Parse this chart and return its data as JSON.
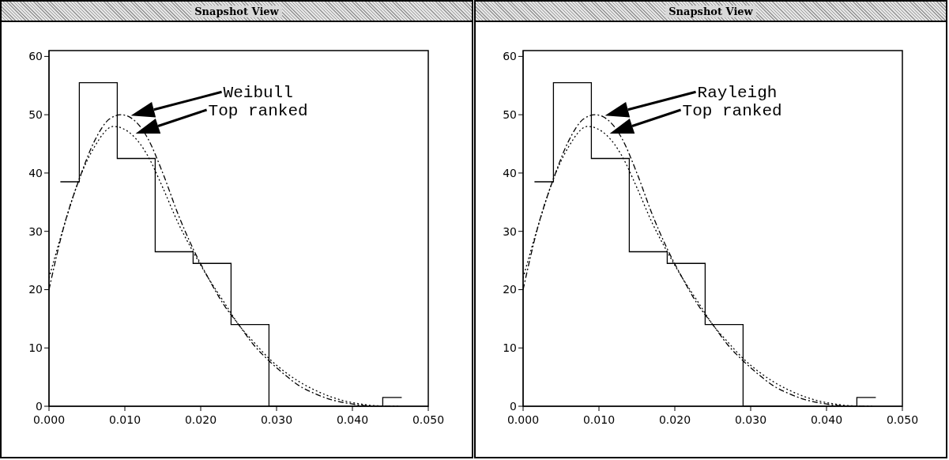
{
  "chart_data": [
    {
      "type": "histogram",
      "title": "Snapshot View",
      "bins": [
        0.0015,
        0.004,
        0.009,
        0.014,
        0.019,
        0.024,
        0.029,
        0.034,
        0.039,
        0.044,
        0.0465
      ],
      "values": [
        38.5,
        55.5,
        42.5,
        26.5,
        24.5,
        14,
        0,
        0,
        0,
        1.5
      ],
      "color": "#000000",
      "xlim": [
        0,
        0.05
      ],
      "xticks": [
        {
          "value": 0,
          "label": "0.000"
        },
        {
          "value": 0.01,
          "label": "0.010"
        },
        {
          "value": 0.02,
          "label": "0.020"
        },
        {
          "value": 0.03,
          "label": "0.030"
        },
        {
          "value": 0.04,
          "label": "0.040"
        },
        {
          "value": 0.05,
          "label": "0.050"
        }
      ],
      "ylim": [
        0,
        61
      ],
      "yticks": [
        0,
        10,
        20,
        30,
        40,
        50,
        60
      ],
      "series": [
        {
          "type": "line",
          "color": "#000000",
          "line_style": "dashed",
          "x": [
            0,
            0.002,
            0.004,
            0.006,
            0.008,
            0.0095,
            0.011,
            0.013,
            0.015,
            0.017,
            0.019,
            0.021,
            0.023,
            0.025,
            0.027,
            0.029,
            0.031,
            0.033,
            0.035,
            0.037,
            0.039,
            0.041,
            0.043,
            0.046
          ],
          "values": [
            20,
            31,
            39,
            45.5,
            49.3,
            50,
            49.3,
            46,
            40,
            33,
            27,
            22,
            17.5,
            14,
            10.5,
            7.8,
            5.5,
            3.5,
            2.2,
            1.2,
            0.6,
            0.2,
            0,
            0
          ]
        },
        {
          "type": "line",
          "color": "#000000",
          "line_style": "dotted",
          "x": [
            0,
            0.002,
            0.004,
            0.006,
            0.0085,
            0.011,
            0.013,
            0.015,
            0.017,
            0.019,
            0.021,
            0.023,
            0.025,
            0.027,
            0.029,
            0.031,
            0.033,
            0.035,
            0.037,
            0.039,
            0.041,
            0.043,
            0.046
          ],
          "values": [
            22,
            31,
            39,
            44.5,
            48,
            46.5,
            43,
            37.5,
            31.5,
            26.5,
            22,
            18,
            14,
            11,
            8.2,
            6,
            4.2,
            2.8,
            1.7,
            0.9,
            0.4,
            0.1,
            0
          ]
        }
      ],
      "annotations": [
        "Weibull",
        "Top ranked"
      ]
    },
    {
      "type": "histogram",
      "title": "Snapshot View",
      "bins": [
        0.0015,
        0.004,
        0.009,
        0.014,
        0.019,
        0.024,
        0.029,
        0.034,
        0.039,
        0.044,
        0.0465
      ],
      "values": [
        38.5,
        55.5,
        42.5,
        26.5,
        24.5,
        14,
        0,
        0,
        0,
        1.5
      ],
      "color": "#000000",
      "xlim": [
        0,
        0.05
      ],
      "xticks": [
        {
          "value": 0,
          "label": "0.000"
        },
        {
          "value": 0.01,
          "label": "0.010"
        },
        {
          "value": 0.02,
          "label": "0.020"
        },
        {
          "value": 0.03,
          "label": "0.030"
        },
        {
          "value": 0.04,
          "label": "0.040"
        },
        {
          "value": 0.05,
          "label": "0.050"
        }
      ],
      "ylim": [
        0,
        61
      ],
      "yticks": [
        0,
        10,
        20,
        30,
        40,
        50,
        60
      ],
      "series": [
        {
          "type": "line",
          "color": "#000000",
          "line_style": "dashed",
          "x": [
            0,
            0.002,
            0.004,
            0.006,
            0.008,
            0.0095,
            0.011,
            0.013,
            0.015,
            0.017,
            0.019,
            0.021,
            0.023,
            0.025,
            0.027,
            0.029,
            0.031,
            0.033,
            0.035,
            0.037,
            0.039,
            0.041,
            0.043,
            0.046
          ],
          "values": [
            20,
            31,
            39,
            45.5,
            49.3,
            50,
            49.3,
            46,
            40,
            33,
            27,
            22,
            17.5,
            14,
            10.5,
            7.8,
            5.5,
            3.5,
            2.2,
            1.2,
            0.6,
            0.2,
            0,
            0
          ]
        },
        {
          "type": "line",
          "color": "#000000",
          "line_style": "dotted",
          "x": [
            0,
            0.002,
            0.004,
            0.006,
            0.0085,
            0.011,
            0.013,
            0.015,
            0.017,
            0.019,
            0.021,
            0.023,
            0.025,
            0.027,
            0.029,
            0.031,
            0.033,
            0.035,
            0.037,
            0.039,
            0.041,
            0.043,
            0.046
          ],
          "values": [
            22,
            31,
            39,
            44.5,
            48,
            46.5,
            43,
            37.5,
            31.5,
            26.5,
            22,
            18,
            14,
            11,
            8.2,
            6,
            4.2,
            2.8,
            1.7,
            0.9,
            0.4,
            0.1,
            0
          ]
        }
      ],
      "annotations": [
        "Rayleigh",
        "Top ranked"
      ]
    }
  ]
}
